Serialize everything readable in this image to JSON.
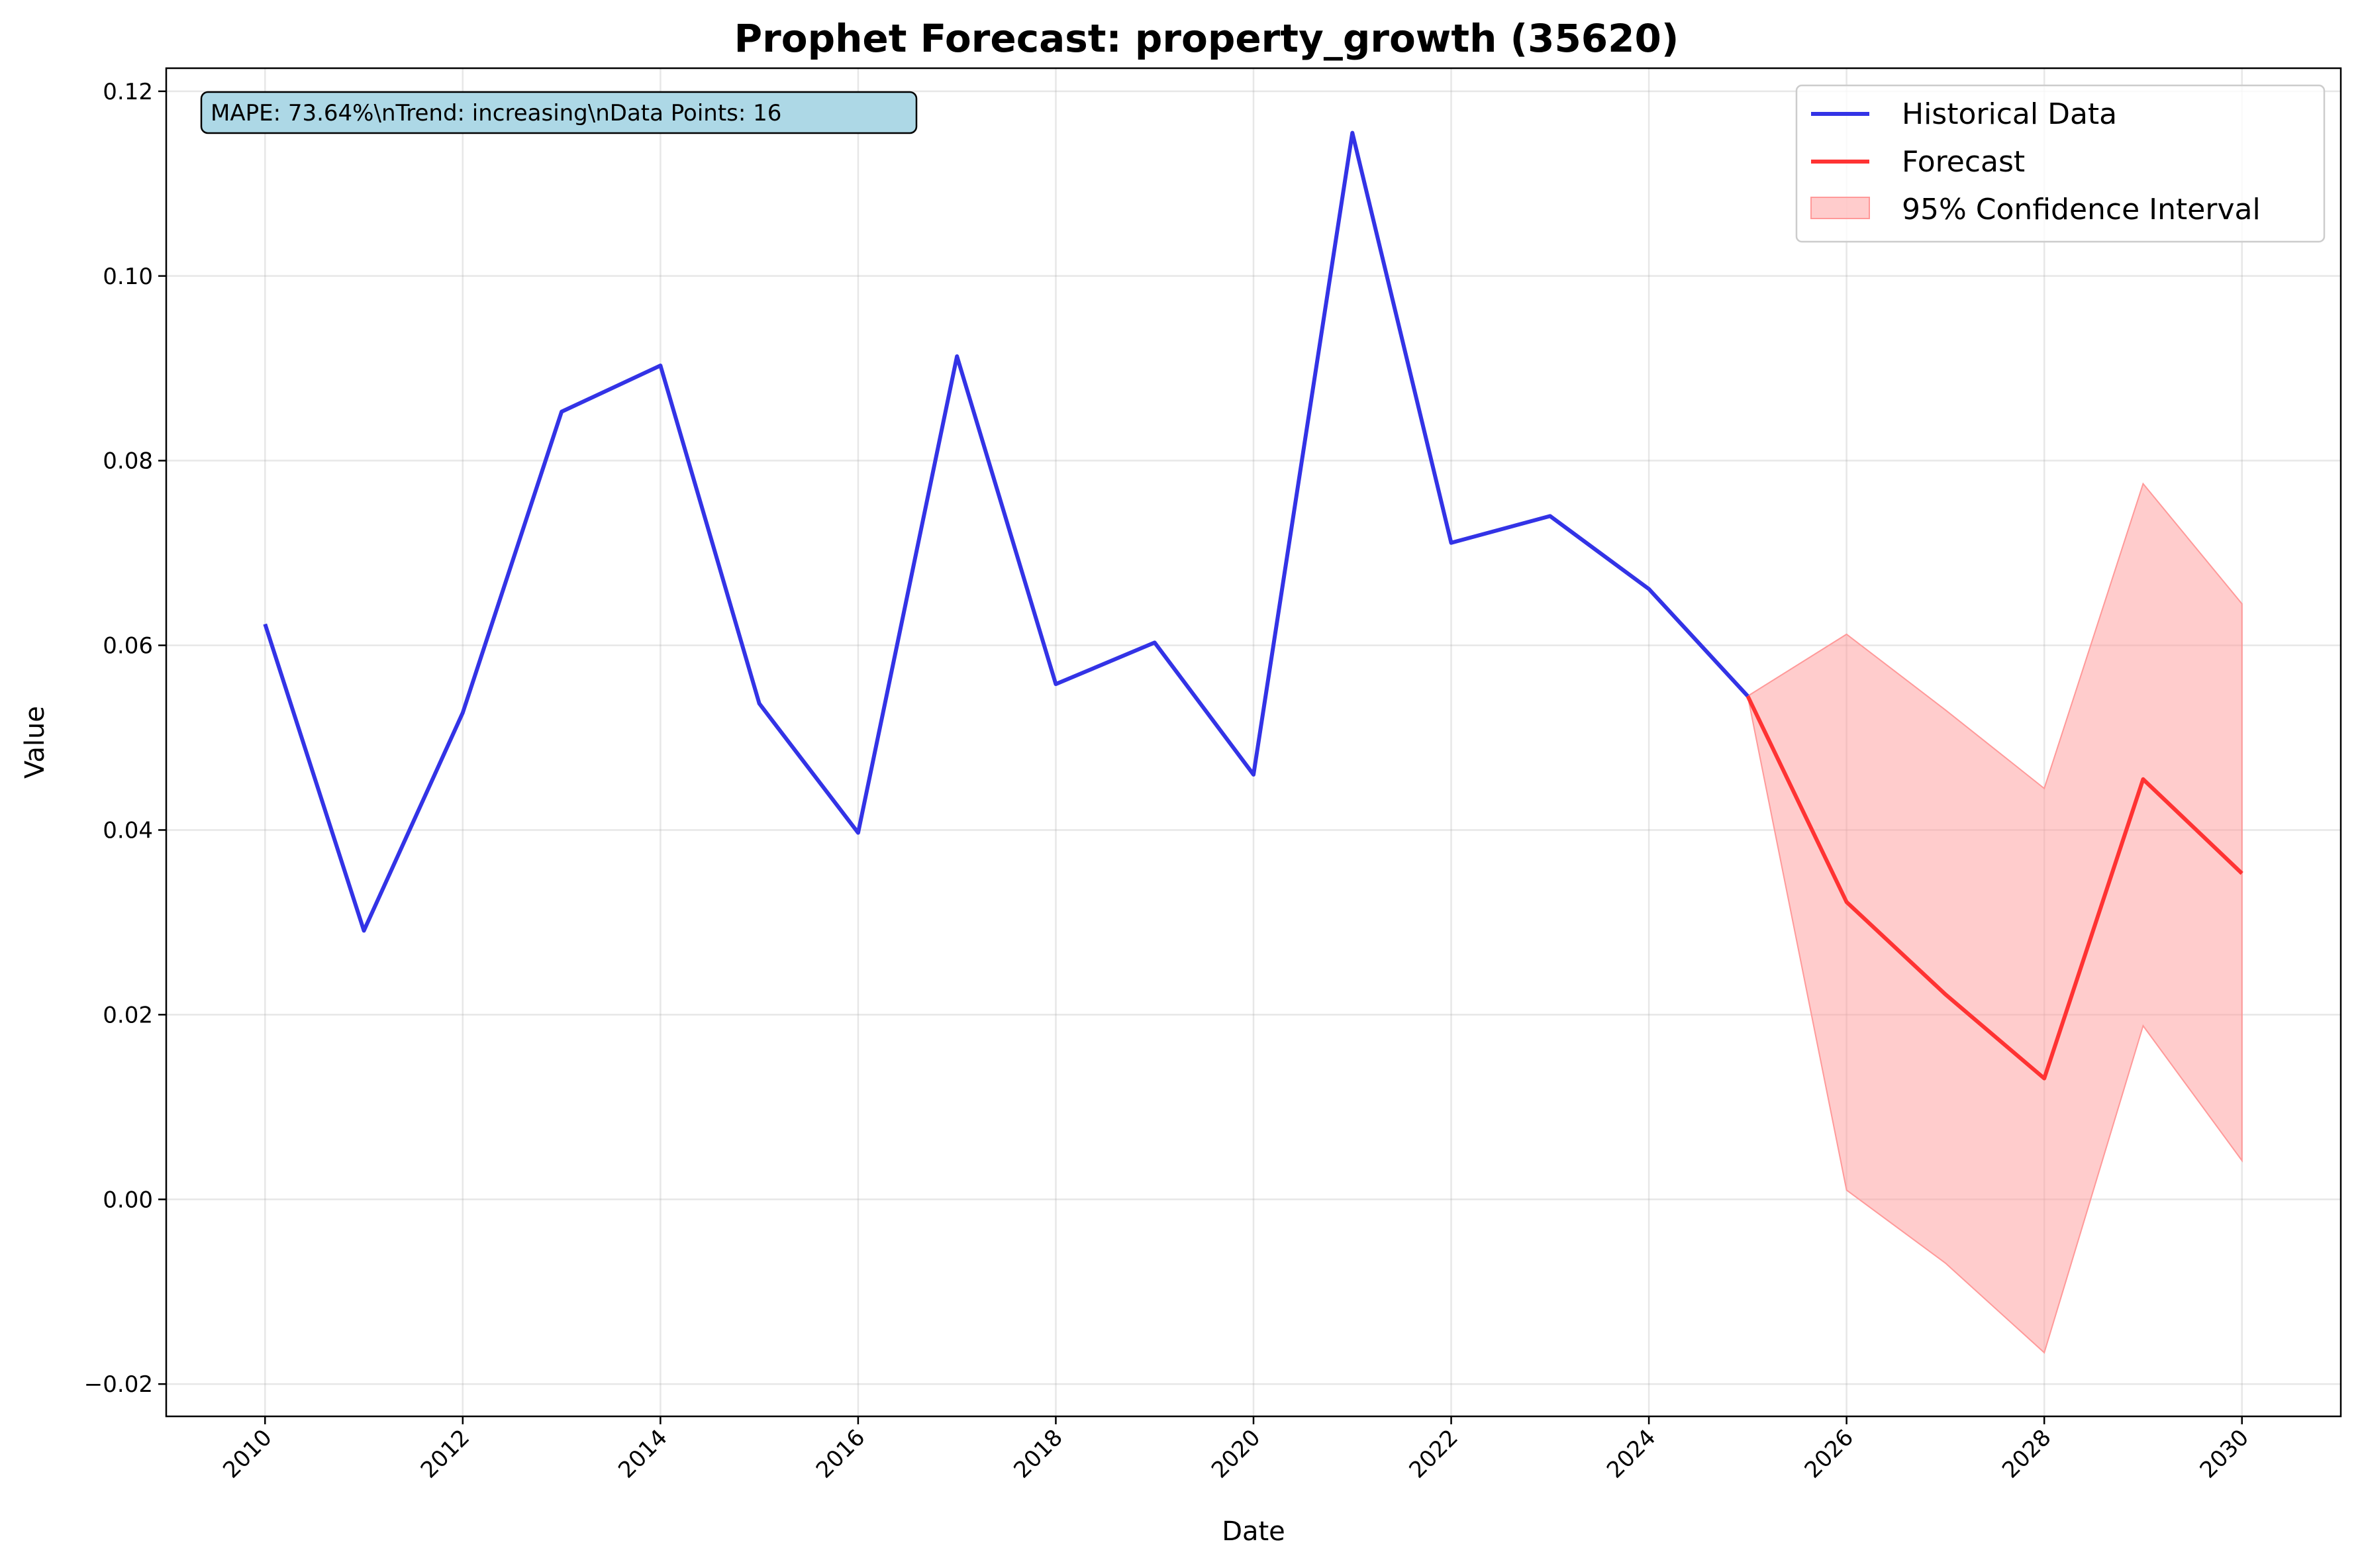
{
  "chart_data": {
    "type": "line",
    "title": "Prophet Forecast: property_growth (35620)",
    "xlabel": "Date",
    "ylabel": "Value",
    "xlim": [
      2009.0,
      2031.0
    ],
    "ylim": [
      -0.0235,
      0.1225
    ],
    "x_ticks": [
      "2010",
      "2012",
      "2014",
      "2016",
      "2018",
      "2020",
      "2022",
      "2024",
      "2026",
      "2028",
      "2030"
    ],
    "y_ticks": [
      "−0.02",
      "0.00",
      "0.02",
      "0.04",
      "0.06",
      "0.08",
      "0.10",
      "0.12"
    ],
    "grid": true,
    "legend_position": "upper right",
    "annotation": "MAPE: 73.64%\\nTrend: increasing\\nData Points: 16",
    "series": [
      {
        "name": "Historical Data",
        "color": "#3333e6",
        "x": [
          2010,
          2011,
          2012,
          2013,
          2014,
          2015,
          2016,
          2017,
          2018,
          2019,
          2020,
          2021,
          2022,
          2023,
          2024,
          2025
        ],
        "y": [
          0.0623,
          0.0291,
          0.0527,
          0.0853,
          0.0903,
          0.0537,
          0.0397,
          0.0913,
          0.0558,
          0.0603,
          0.046,
          0.1155,
          0.0711,
          0.074,
          0.0661,
          0.0545
        ]
      },
      {
        "name": "Forecast",
        "color": "#ff3333",
        "x": [
          2025,
          2026,
          2027,
          2028,
          2029,
          2030
        ],
        "y": [
          0.0545,
          0.0322,
          0.0222,
          0.0131,
          0.0455,
          0.0353
        ]
      }
    ],
    "confidence_interval": {
      "name": "95% Confidence Interval",
      "color": "#ff9999",
      "x": [
        2025,
        2026,
        2027,
        2028,
        2029,
        2030
      ],
      "lower": [
        0.0545,
        0.001,
        -0.0069,
        -0.0166,
        0.0188,
        0.0042
      ],
      "upper": [
        0.0545,
        0.0612,
        0.053,
        0.0445,
        0.0775,
        0.0645
      ]
    }
  }
}
